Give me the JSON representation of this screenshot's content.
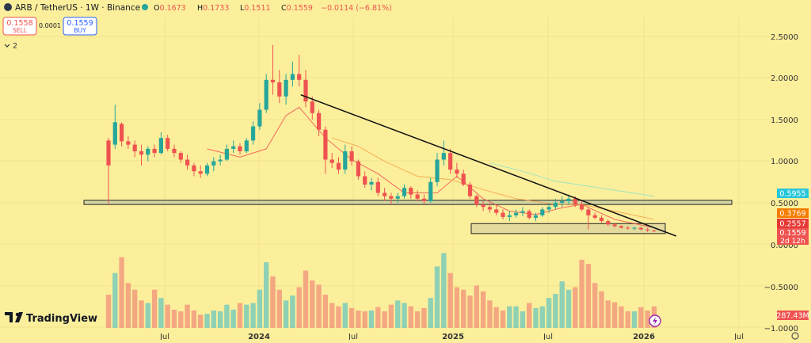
{
  "header": {
    "symbol": "ARB / TetherUS · 1W · Binance",
    "open_label": "O",
    "open_value": "0.1673",
    "high_label": "H",
    "high_value": "0.1733",
    "low_label": "L",
    "low_value": "0.1511",
    "close_label": "C",
    "close_value": "0.1559",
    "change": "−0.0114 (−6.81%)"
  },
  "trade": {
    "sell_price": "0.1558",
    "sell_label": "SELL",
    "spread": "0.0001",
    "buy_price": "0.1559",
    "buy_label": "BUY"
  },
  "indicators_toggle": "2",
  "logo_text": "TradingView",
  "colors": {
    "background": "#fcef9c",
    "up": "#26a69a",
    "down": "#ef5350",
    "vol_up": "#8fd1b4",
    "vol_down": "#f4a882",
    "ma_fast": "#ef5350",
    "ma_mid": "#f5a14a",
    "ma_slow": "#8fe3c6"
  },
  "chart_data": {
    "type": "candlestick",
    "title": "ARB / TetherUS · 1W · Binance",
    "y_axis_ticks": [
      "2.5000",
      "2.0000",
      "1.5000",
      "1.0000",
      "0.5000",
      "0.0000",
      "−0.5000",
      "−1.0000"
    ],
    "x_axis_ticks": [
      "Jul",
      "2024",
      "Jul",
      "2025",
      "Jul",
      "2026",
      "Jul"
    ],
    "price_range": [
      0.1,
      2.43
    ],
    "candles_ohlc": [
      [
        1.25,
        1.28,
        0.48,
        0.95
      ],
      [
        1.2,
        1.68,
        1.15,
        1.47
      ],
      [
        1.45,
        1.47,
        1.18,
        1.24
      ],
      [
        1.24,
        1.3,
        1.15,
        1.2
      ],
      [
        1.2,
        1.25,
        1.05,
        1.12
      ],
      [
        1.12,
        1.2,
        0.95,
        1.08
      ],
      [
        1.08,
        1.18,
        1.0,
        1.15
      ],
      [
        1.15,
        1.2,
        1.05,
        1.1
      ],
      [
        1.1,
        1.35,
        1.08,
        1.28
      ],
      [
        1.28,
        1.32,
        1.12,
        1.15
      ],
      [
        1.15,
        1.2,
        1.05,
        1.1
      ],
      [
        1.1,
        1.12,
        0.98,
        1.02
      ],
      [
        1.02,
        1.08,
        0.9,
        0.95
      ],
      [
        0.95,
        0.98,
        0.82,
        0.88
      ],
      [
        0.88,
        0.95,
        0.8,
        0.85
      ],
      [
        0.85,
        0.98,
        0.82,
        0.95
      ],
      [
        0.95,
        1.05,
        0.88,
        1.0
      ],
      [
        1.0,
        1.08,
        0.95,
        1.02
      ],
      [
        1.02,
        1.2,
        1.0,
        1.15
      ],
      [
        1.15,
        1.25,
        1.1,
        1.18
      ],
      [
        1.18,
        1.22,
        1.08,
        1.12
      ],
      [
        1.12,
        1.28,
        1.1,
        1.25
      ],
      [
        1.25,
        1.48,
        1.2,
        1.42
      ],
      [
        1.42,
        1.7,
        1.38,
        1.62
      ],
      [
        1.62,
        2.05,
        1.58,
        1.98
      ],
      [
        1.98,
        2.4,
        1.8,
        1.95
      ],
      [
        1.95,
        2.1,
        1.7,
        1.78
      ],
      [
        1.78,
        2.05,
        1.68,
        1.98
      ],
      [
        1.98,
        2.2,
        1.9,
        2.05
      ],
      [
        2.05,
        2.28,
        1.9,
        1.98
      ],
      [
        1.98,
        2.1,
        1.65,
        1.72
      ],
      [
        1.72,
        1.78,
        1.5,
        1.58
      ],
      [
        1.58,
        1.62,
        1.3,
        1.38
      ],
      [
        1.38,
        1.42,
        0.85,
        1.02
      ],
      [
        1.02,
        1.1,
        0.92,
        0.98
      ],
      [
        0.98,
        1.05,
        0.85,
        0.9
      ],
      [
        0.9,
        1.2,
        0.85,
        1.12
      ],
      [
        1.12,
        1.18,
        0.95,
        1.0
      ],
      [
        1.0,
        1.02,
        0.78,
        0.82
      ],
      [
        0.82,
        0.88,
        0.68,
        0.72
      ],
      [
        0.72,
        0.8,
        0.65,
        0.75
      ],
      [
        0.75,
        0.8,
        0.58,
        0.62
      ],
      [
        0.62,
        0.68,
        0.52,
        0.58
      ],
      [
        0.58,
        0.62,
        0.48,
        0.55
      ],
      [
        0.55,
        0.62,
        0.5,
        0.58
      ],
      [
        0.58,
        0.72,
        0.55,
        0.68
      ],
      [
        0.68,
        0.7,
        0.55,
        0.6
      ],
      [
        0.6,
        0.65,
        0.52,
        0.55
      ],
      [
        0.55,
        0.6,
        0.48,
        0.52
      ],
      [
        0.52,
        0.8,
        0.5,
        0.75
      ],
      [
        0.75,
        1.1,
        0.7,
        1.02
      ],
      [
        1.02,
        1.25,
        0.95,
        1.1
      ],
      [
        1.1,
        1.15,
        0.85,
        0.9
      ],
      [
        0.9,
        0.98,
        0.8,
        0.85
      ],
      [
        0.85,
        0.9,
        0.7,
        0.72
      ],
      [
        0.72,
        0.75,
        0.55,
        0.58
      ],
      [
        0.58,
        0.6,
        0.45,
        0.48
      ],
      [
        0.48,
        0.52,
        0.4,
        0.45
      ],
      [
        0.45,
        0.5,
        0.38,
        0.42
      ],
      [
        0.42,
        0.48,
        0.35,
        0.38
      ],
      [
        0.38,
        0.42,
        0.3,
        0.33
      ],
      [
        0.33,
        0.4,
        0.28,
        0.35
      ],
      [
        0.35,
        0.42,
        0.32,
        0.38
      ],
      [
        0.38,
        0.45,
        0.34,
        0.4
      ],
      [
        0.4,
        0.42,
        0.3,
        0.32
      ],
      [
        0.32,
        0.38,
        0.28,
        0.35
      ],
      [
        0.35,
        0.45,
        0.33,
        0.42
      ],
      [
        0.42,
        0.5,
        0.38,
        0.45
      ],
      [
        0.45,
        0.55,
        0.42,
        0.5
      ],
      [
        0.5,
        0.58,
        0.45,
        0.52
      ],
      [
        0.52,
        0.6,
        0.48,
        0.55
      ],
      [
        0.55,
        0.58,
        0.45,
        0.48
      ],
      [
        0.48,
        0.52,
        0.4,
        0.42
      ],
      [
        0.42,
        0.45,
        0.18,
        0.35
      ],
      [
        0.35,
        0.38,
        0.3,
        0.32
      ],
      [
        0.32,
        0.35,
        0.26,
        0.28
      ],
      [
        0.28,
        0.3,
        0.22,
        0.24
      ],
      [
        0.24,
        0.26,
        0.2,
        0.22
      ],
      [
        0.22,
        0.23,
        0.19,
        0.2
      ],
      [
        0.2,
        0.22,
        0.18,
        0.19
      ],
      [
        0.19,
        0.21,
        0.17,
        0.2
      ],
      [
        0.2,
        0.21,
        0.17,
        0.18
      ],
      [
        0.18,
        0.2,
        0.15,
        0.17
      ],
      [
        0.167,
        0.173,
        0.151,
        0.156
      ]
    ],
    "volume": [
      0.4,
      0.66,
      0.85,
      0.54,
      0.46,
      0.33,
      0.3,
      0.46,
      0.36,
      0.28,
      0.22,
      0.2,
      0.28,
      0.21,
      0.16,
      0.17,
      0.21,
      0.2,
      0.28,
      0.22,
      0.3,
      0.28,
      0.3,
      0.46,
      0.79,
      0.62,
      0.46,
      0.33,
      0.39,
      0.49,
      0.69,
      0.57,
      0.52,
      0.4,
      0.3,
      0.26,
      0.3,
      0.24,
      0.21,
      0.2,
      0.21,
      0.25,
      0.2,
      0.28,
      0.33,
      0.3,
      0.26,
      0.2,
      0.24,
      0.36,
      0.74,
      0.9,
      0.66,
      0.49,
      0.46,
      0.39,
      0.51,
      0.44,
      0.33,
      0.25,
      0.21,
      0.26,
      0.26,
      0.2,
      0.3,
      0.24,
      0.26,
      0.36,
      0.41,
      0.56,
      0.46,
      0.49,
      0.82,
      0.77,
      0.54,
      0.44,
      0.33,
      0.31,
      0.26,
      0.2,
      0.2,
      0.25,
      0.21,
      0.26
    ],
    "moving_averages": [
      {
        "name": "MA fast",
        "color": "#ef5350",
        "points": [
          [
            15,
            1.15
          ],
          [
            20,
            1.05
          ],
          [
            24,
            1.15
          ],
          [
            27,
            1.55
          ],
          [
            29,
            1.65
          ],
          [
            33,
            1.28
          ],
          [
            37,
            1.02
          ],
          [
            41,
            0.85
          ],
          [
            45,
            0.62
          ],
          [
            50,
            0.62
          ],
          [
            53,
            0.82
          ],
          [
            57,
            0.55
          ],
          [
            61,
            0.4
          ],
          [
            65,
            0.36
          ],
          [
            69,
            0.44
          ],
          [
            72,
            0.48
          ],
          [
            77,
            0.3
          ],
          [
            83,
            0.2
          ]
        ]
      },
      {
        "name": "MA mid",
        "color": "#f5a14a",
        "points": [
          [
            34,
            1.28
          ],
          [
            38,
            1.18
          ],
          [
            42,
            1.0
          ],
          [
            47,
            0.82
          ],
          [
            52,
            0.78
          ],
          [
            57,
            0.66
          ],
          [
            62,
            0.55
          ],
          [
            68,
            0.48
          ],
          [
            72,
            0.48
          ],
          [
            77,
            0.4
          ],
          [
            83,
            0.3
          ]
        ]
      },
      {
        "name": "MA slow",
        "color": "#8fe3c6",
        "points": [
          [
            58,
            0.98
          ],
          [
            63,
            0.88
          ],
          [
            68,
            0.76
          ],
          [
            73,
            0.7
          ],
          [
            78,
            0.64
          ],
          [
            83,
            0.58
          ]
        ]
      }
    ],
    "annotations": {
      "support_zone": [
        0.48,
        0.53
      ],
      "accumulation_box": [
        0.13,
        0.25
      ],
      "descending_trendline": [
        [
          29,
          1.8
        ],
        [
          86,
          0.1
        ]
      ]
    },
    "price_labels": [
      {
        "value": 0.5955,
        "text": "0.5955",
        "color": "#26c6da"
      },
      {
        "value": 0.3769,
        "text": "0.3769",
        "color": "#f57c00"
      },
      {
        "value": 0.2557,
        "text": "0.2557",
        "color": "#e53935"
      },
      {
        "value": 0.1559,
        "text": "0.1559",
        "color": "#ef5350"
      }
    ],
    "countdown": "2d 12h",
    "volume_label": "287.43M"
  }
}
